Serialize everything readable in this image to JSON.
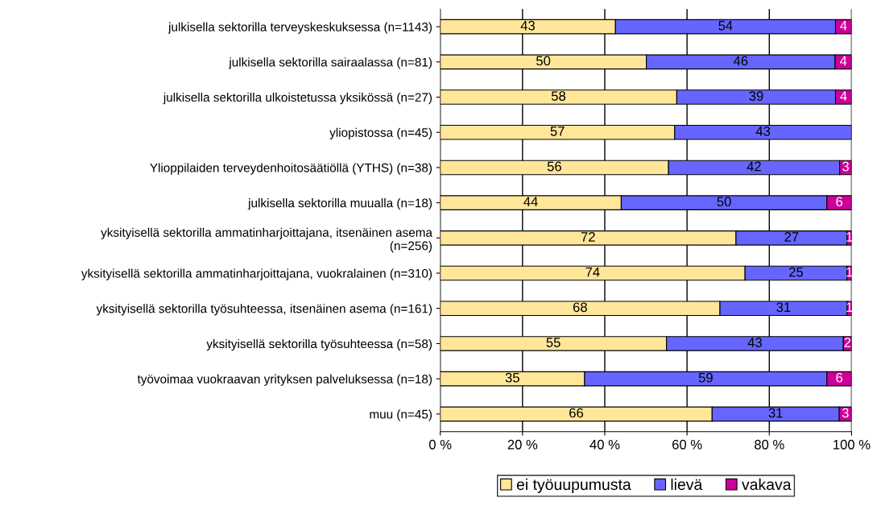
{
  "chart_data": {
    "type": "bar",
    "orientation": "horizontal",
    "stacked": true,
    "categories": [
      "julkisella sektorilla terveyskeskuksessa (n=1143)",
      "julkisella sektorilla sairaalassa (n=81)",
      "julkisella sektorilla ulkoistetussa yksikössä (n=27)",
      "yliopistossa (n=45)",
      "Ylioppilaiden terveydenhoitosäätiöllä (YTHS) (n=38)",
      "julkisella sektorilla muualla (n=18)",
      "yksityisellä sektorilla ammatinharjoittajana, itsenäinen asema\n(n=256)",
      "yksityisellä sektorilla ammatinharjoittajana, vuokralainen (n=310)",
      "yksityisellä sektorilla työsuhteessa, itsenäinen asema (n=161)",
      "yksityisellä sektorilla työsuhteessa (n=58)",
      "työvoimaa vuokraavan yrityksen palveluksessa (n=18)",
      "muu (n=45)"
    ],
    "series": [
      {
        "name": "ei työuupumusta",
        "color": "#ffe699",
        "values": [
          42.6,
          50.1,
          57.5,
          57.0,
          55.5,
          44.0,
          71.9,
          74.1,
          68.0,
          55.0,
          35.1,
          66.1
        ],
        "value_labels": [
          "43",
          "50",
          "58",
          "57",
          "56",
          "44",
          "72",
          "74",
          "68",
          "55",
          "35",
          "66"
        ]
      },
      {
        "name": "lievä",
        "color": "#6666ff",
        "values": [
          53.5,
          45.9,
          38.6,
          43.0,
          41.6,
          50.0,
          27.0,
          24.8,
          30.9,
          43.0,
          58.9,
          30.9
        ],
        "value_labels": [
          "54",
          "46",
          "39",
          "43",
          "42",
          "50",
          "27",
          "25",
          "31",
          "43",
          "59",
          "31"
        ]
      },
      {
        "name": "vakava",
        "color": "#cc0099",
        "values": [
          3.9,
          4.0,
          3.9,
          0,
          2.9,
          6.0,
          1.1,
          1.1,
          1.1,
          2.0,
          6.0,
          3.0
        ],
        "value_labels": [
          "4",
          "4",
          "4",
          null,
          "3",
          "6",
          "1",
          "1",
          "1",
          "2",
          "6",
          "3"
        ]
      }
    ],
    "xlim": [
      0,
      100
    ],
    "xticks": [
      {
        "value": 0,
        "label": "0 %"
      },
      {
        "value": 20,
        "label": "20 %"
      },
      {
        "value": 40,
        "label": "40 %"
      },
      {
        "value": 60,
        "label": "60 %"
      },
      {
        "value": 80,
        "label": "80 %"
      },
      {
        "value": 100,
        "label": "100 %"
      }
    ],
    "grid": "x",
    "legend": "bottom"
  }
}
